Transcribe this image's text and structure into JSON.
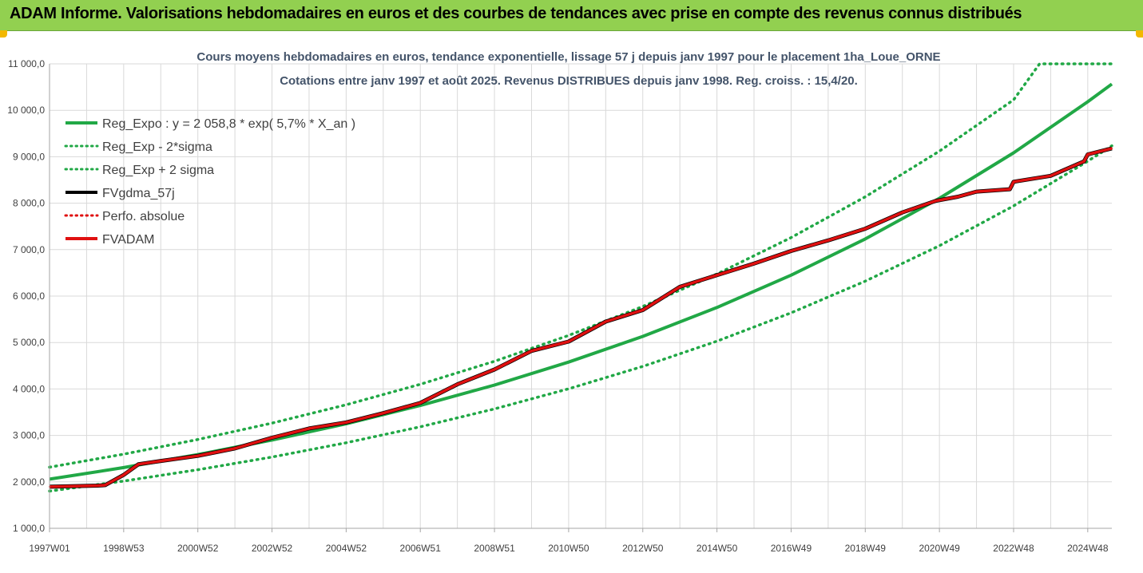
{
  "header": {
    "title": "ADAM Informe. Valorisations hebdomadaires en euros et des courbes de tendances avec prise en compte des revenus connus distribués"
  },
  "colors": {
    "header_bg": "#92d050",
    "trend": "#21a846",
    "band": "#21a846",
    "fvgdma": "#000000",
    "perfo": "#e01010",
    "fvadam": "#e01010",
    "grid": "#d9d9d9"
  },
  "chart_data": {
    "type": "line",
    "title": "Cours moyens hebdomadaires en euros, tendance exponentielle, lissage 57 j depuis janv 1997  pour le placement 1ha_Loue_ORNE",
    "subtitle": "Cotations entre janv 1997 et août 2025. Revenus DISTRIBUES depuis janv 1998. Reg. croiss. : 15,4/20.",
    "xlabel": "",
    "ylabel": "",
    "ylim": [
      1000,
      11000
    ],
    "xlim": [
      1997.0,
      2025.65
    ],
    "x_unit": "year",
    "y_ticks": [
      "1 000,0",
      "2 000,0",
      "3 000,0",
      "4 000,0",
      "5 000,0",
      "6 000,0",
      "7 000,0",
      "8 000,0",
      "9 000,0",
      "10 000,0",
      "11 000,0"
    ],
    "y_tick_values": [
      1000,
      2000,
      3000,
      4000,
      5000,
      6000,
      7000,
      8000,
      9000,
      10000,
      11000
    ],
    "x_tick_labels": [
      "1997W01",
      "1998W53",
      "2000W52",
      "2002W52",
      "2004W52",
      "2006W51",
      "2008W51",
      "2010W50",
      "2012W50",
      "2014W50",
      "2016W49",
      "2018W49",
      "2020W49",
      "2022W48",
      "2024W48"
    ],
    "x_tick_values": [
      1997.0,
      1999.0,
      2001.0,
      2003.0,
      2005.0,
      2007.0,
      2009.0,
      2011.0,
      2013.0,
      2015.0,
      2017.0,
      2019.0,
      2021.0,
      2023.0,
      2025.0
    ],
    "grid": true,
    "legend_position": "top-left",
    "legend": [
      {
        "label": "Reg_Expo : y = 2 058,8 * exp( 5,7% *  X_an )",
        "style": "solid",
        "color": "#21a846"
      },
      {
        "label": "Reg_Exp - 2*sigma",
        "style": "dotted",
        "color": "#21a846"
      },
      {
        "label": "Reg_Exp + 2 sigma",
        "style": "dotted",
        "color": "#21a846"
      },
      {
        "label": "FVgdma_57j",
        "style": "solid",
        "color": "#000000"
      },
      {
        "label": "Perfo. absolue",
        "style": "dotted",
        "color": "#e01010"
      },
      {
        "label": "FVADAM",
        "style": "solid",
        "color": "#e01010"
      }
    ],
    "series": [
      {
        "name": "Reg_Expo : y = 2 058,8 * exp( 5,7% *  X_an )",
        "x": [
          1997.0,
          1999.0,
          2001.0,
          2003.0,
          2005.0,
          2007.0,
          2009.0,
          2011.0,
          2013.0,
          2015.0,
          2017.0,
          2019.0,
          2021.0,
          2023.0,
          2025.0,
          2025.65
        ],
        "values": [
          2059,
          2308,
          2587,
          2900,
          3251,
          3644,
          4085,
          4579,
          5133,
          5754,
          6450,
          7230,
          8104,
          9084,
          10183,
          10565
        ]
      },
      {
        "name": "Reg_Exp - 2*sigma",
        "x": [
          1997.0,
          1999.0,
          2001.0,
          2003.0,
          2005.0,
          2007.0,
          2009.0,
          2011.0,
          2013.0,
          2015.0,
          2017.0,
          2019.0,
          2021.0,
          2023.0,
          2025.0,
          2025.65
        ],
        "values": [
          1800,
          2018,
          2262,
          2535,
          2842,
          3186,
          3571,
          4003,
          4487,
          5030,
          5639,
          6321,
          7085,
          7942,
          8903,
          9236
        ]
      },
      {
        "name": "Reg_Exp + 2 sigma",
        "x": [
          1997.0,
          1999.0,
          2001.0,
          2003.0,
          2005.0,
          2007.0,
          2009.0,
          2011.0,
          2013.0,
          2015.0,
          2017.0,
          2019.0,
          2021.0,
          2023.0,
          2023.7,
          2025.65
        ],
        "values": [
          2317,
          2597,
          2912,
          3264,
          3659,
          4101,
          4597,
          5153,
          5777,
          6476,
          7259,
          8137,
          9121,
          10225,
          11000,
          11000
        ]
      },
      {
        "name": "FVgdma_57j",
        "x": [
          1997.0,
          1998.3,
          1998.5,
          1999.0,
          1999.4,
          2000.0,
          2001.0,
          2002.0,
          2003.0,
          2004.0,
          2005.0,
          2006.0,
          2007.0,
          2008.0,
          2009.0,
          2010.0,
          2011.0,
          2012.0,
          2013.0,
          2014.0,
          2015.0,
          2016.0,
          2017.0,
          2018.0,
          2019.0,
          2020.0,
          2020.9,
          2021.5,
          2022.0,
          2022.9,
          2023.0,
          2024.0,
          2024.9,
          2025.0,
          2025.65
        ],
        "values": [
          1895,
          1920,
          1930,
          2150,
          2380,
          2450,
          2560,
          2720,
          2950,
          3150,
          3280,
          3480,
          3700,
          4100,
          4420,
          4820,
          5020,
          5450,
          5700,
          6200,
          6450,
          6700,
          6970,
          7200,
          7450,
          7800,
          8050,
          8140,
          8250,
          8300,
          8460,
          8590,
          8900,
          9050,
          9180
        ]
      },
      {
        "name": "Perfo. absolue",
        "x": [
          1997.0,
          1998.3,
          1998.5,
          1999.0,
          1999.4,
          2000.0,
          2001.0,
          2002.0,
          2003.0,
          2004.0,
          2005.0,
          2006.0,
          2007.0,
          2008.0,
          2009.0,
          2010.0,
          2011.0,
          2012.0,
          2013.0,
          2014.0,
          2015.0,
          2016.0,
          2017.0,
          2018.0,
          2019.0,
          2020.0,
          2020.9,
          2021.5,
          2022.0,
          2022.9,
          2023.0,
          2024.0,
          2024.9,
          2025.0,
          2025.65
        ],
        "values": [
          1895,
          1920,
          1930,
          2150,
          2380,
          2450,
          2560,
          2720,
          2950,
          3150,
          3280,
          3480,
          3700,
          4100,
          4420,
          4820,
          5020,
          5450,
          5700,
          6200,
          6450,
          6700,
          6970,
          7200,
          7450,
          7800,
          8050,
          8140,
          8250,
          8300,
          8460,
          8590,
          8900,
          9050,
          9180
        ]
      },
      {
        "name": "FVADAM",
        "x": [
          1997.0,
          1998.3,
          1998.5,
          1999.0,
          1999.4,
          2000.0,
          2001.0,
          2002.0,
          2003.0,
          2004.0,
          2005.0,
          2006.0,
          2007.0,
          2008.0,
          2009.0,
          2010.0,
          2011.0,
          2012.0,
          2013.0,
          2014.0,
          2015.0,
          2016.0,
          2017.0,
          2018.0,
          2019.0,
          2020.0,
          2020.9,
          2021.5,
          2022.0,
          2022.9,
          2023.0,
          2024.0,
          2024.9,
          2025.0,
          2025.65
        ],
        "values": [
          1895,
          1920,
          1930,
          2150,
          2380,
          2450,
          2560,
          2720,
          2950,
          3150,
          3280,
          3480,
          3700,
          4100,
          4420,
          4820,
          5020,
          5450,
          5700,
          6200,
          6450,
          6700,
          6970,
          7200,
          7450,
          7800,
          8050,
          8140,
          8250,
          8300,
          8460,
          8590,
          8900,
          9050,
          9180
        ]
      }
    ]
  }
}
